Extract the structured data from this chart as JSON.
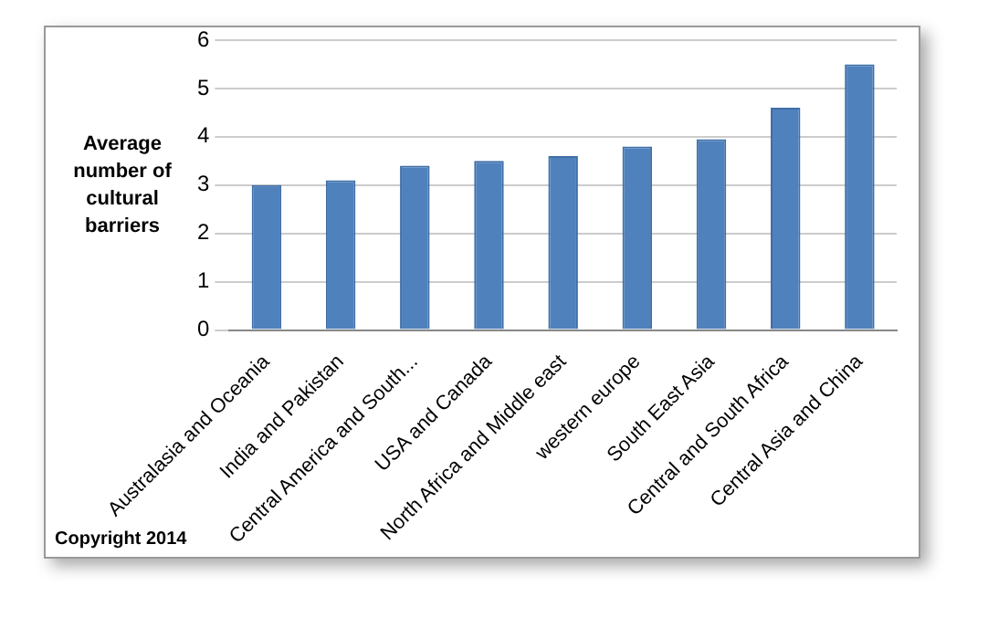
{
  "chart_data": {
    "type": "bar",
    "ylabel": "Average number of cultural barriers",
    "categories": [
      "Australasia and Oceania",
      "India and Pakistan",
      "Central America and South...",
      "USA and Canada",
      "North Africa and Middle east",
      "western europe",
      "South East Asia",
      "Central and South Africa",
      "Central Asia and China"
    ],
    "values": [
      3.0,
      3.1,
      3.4,
      3.5,
      3.6,
      3.8,
      3.95,
      4.6,
      5.5
    ],
    "color": "#4f81bd",
    "ylim": [
      0,
      6
    ],
    "yticks": [
      0,
      1,
      2,
      3,
      4,
      5,
      6
    ],
    "grid": "y",
    "legend": false,
    "annotations": [
      "Copyright 2014"
    ]
  }
}
